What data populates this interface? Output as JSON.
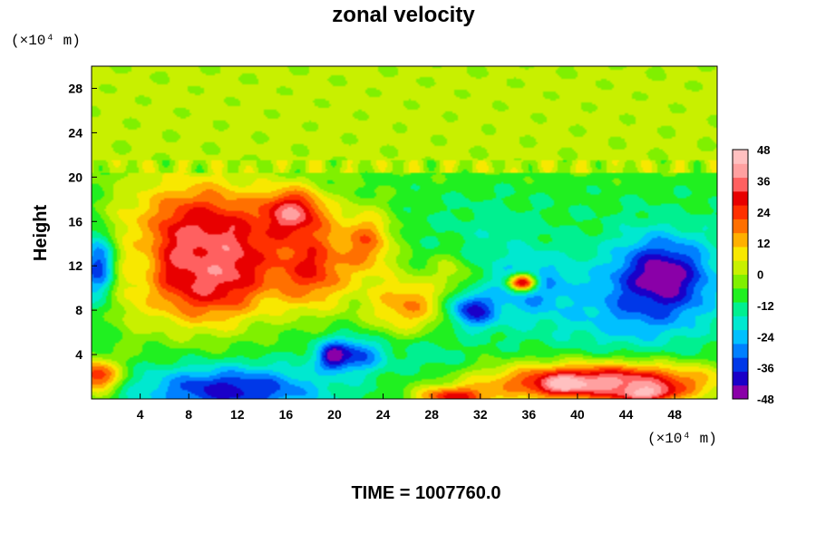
{
  "chart_data": {
    "type": "heatmap",
    "title": "zonal velocity",
    "ylabel": "Height",
    "x_unit_label": "(×10⁴ m)",
    "y_unit_label": "(×10⁴ m)",
    "xlim": [
      0,
      51.5
    ],
    "ylim": [
      0,
      30
    ],
    "x_ticks": [
      4,
      8,
      12,
      16,
      20,
      24,
      28,
      32,
      36,
      40,
      44,
      48
    ],
    "y_ticks": [
      4,
      8,
      12,
      16,
      20,
      24,
      28
    ],
    "colorbar": {
      "range": [
        -48,
        48
      ],
      "ticks": [
        48,
        36,
        24,
        12,
        0,
        -12,
        -24,
        -36,
        -48
      ],
      "colors": [
        "#8a00a8",
        "#1a00c8",
        "#0038e8",
        "#0080ff",
        "#00c0ff",
        "#00e8d0",
        "#00f090",
        "#20f020",
        "#80f000",
        "#c8f000",
        "#f8e800",
        "#ffb000",
        "#ff7000",
        "#ff3000",
        "#e80000",
        "#ff6060",
        "#ffa0a0",
        "#ffc0c0"
      ]
    },
    "field_blobs": [
      {
        "x": 0.0,
        "y": 0.0,
        "rx": 52,
        "ry": 20,
        "value": -10
      },
      {
        "x": 25.0,
        "y": 25.0,
        "rx": 60,
        "ry": 5.5,
        "value": 2
      },
      {
        "x": 10.0,
        "y": 12.5,
        "rx": 5.5,
        "ry": 5.5,
        "value": 46
      },
      {
        "x": 16.5,
        "y": 16.5,
        "rx": 3.5,
        "ry": 3.0,
        "value": 42
      },
      {
        "x": 8.5,
        "y": 13.5,
        "rx": 8.0,
        "ry": 7.5,
        "value": 34
      },
      {
        "x": 18.0,
        "y": 12.0,
        "rx": 4.5,
        "ry": 5.0,
        "value": 28
      },
      {
        "x": 22.5,
        "y": 14.0,
        "rx": 3.0,
        "ry": 4.0,
        "value": 20
      },
      {
        "x": 3.5,
        "y": 12.5,
        "rx": 2.5,
        "ry": 7.5,
        "value": 8
      },
      {
        "x": 0.5,
        "y": 12.0,
        "rx": 1.8,
        "ry": 4.0,
        "value": -34
      },
      {
        "x": 0.5,
        "y": 2.0,
        "rx": 2.5,
        "ry": 2.0,
        "value": 30
      },
      {
        "x": 11.5,
        "y": 0.8,
        "rx": 9.0,
        "ry": 2.6,
        "value": -40
      },
      {
        "x": 21.5,
        "y": 4.0,
        "rx": 3.5,
        "ry": 2.0,
        "value": -36
      },
      {
        "x": 20.0,
        "y": 3.8,
        "rx": 1.4,
        "ry": 1.3,
        "value": -48
      },
      {
        "x": 26.0,
        "y": 8.5,
        "rx": 4.5,
        "ry": 3.5,
        "value": 16
      },
      {
        "x": 30.0,
        "y": 11.5,
        "rx": 2.5,
        "ry": 2.5,
        "value": 8
      },
      {
        "x": 33.0,
        "y": 14.5,
        "rx": 5.0,
        "ry": 4.5,
        "value": -14
      },
      {
        "x": 36.5,
        "y": 10.0,
        "rx": 4.5,
        "ry": 3.5,
        "value": -30
      },
      {
        "x": 35.5,
        "y": 10.5,
        "rx": 1.5,
        "ry": 1.0,
        "value": 34
      },
      {
        "x": 31.5,
        "y": 8.0,
        "rx": 2.5,
        "ry": 2.0,
        "value": -40
      },
      {
        "x": 44.0,
        "y": 8.0,
        "rx": 7.5,
        "ry": 4.5,
        "value": -24
      },
      {
        "x": 47.0,
        "y": 11.0,
        "rx": 5.0,
        "ry": 4.5,
        "value": -48
      },
      {
        "x": 42.0,
        "y": 1.5,
        "rx": 12.0,
        "ry": 2.2,
        "value": 40
      },
      {
        "x": 39.0,
        "y": 1.3,
        "rx": 2.5,
        "ry": 0.9,
        "value": 48
      },
      {
        "x": 30.0,
        "y": 0.2,
        "rx": 4.0,
        "ry": 1.2,
        "value": 30
      },
      {
        "x": 45.5,
        "y": 0.6,
        "rx": 3.0,
        "ry": 1.0,
        "value": 46
      },
      {
        "x": 28.0,
        "y": 4.0,
        "rx": 3.0,
        "ry": 2.0,
        "value": -14
      }
    ]
  },
  "footer": {
    "time_label": "TIME = 1007760.0"
  }
}
